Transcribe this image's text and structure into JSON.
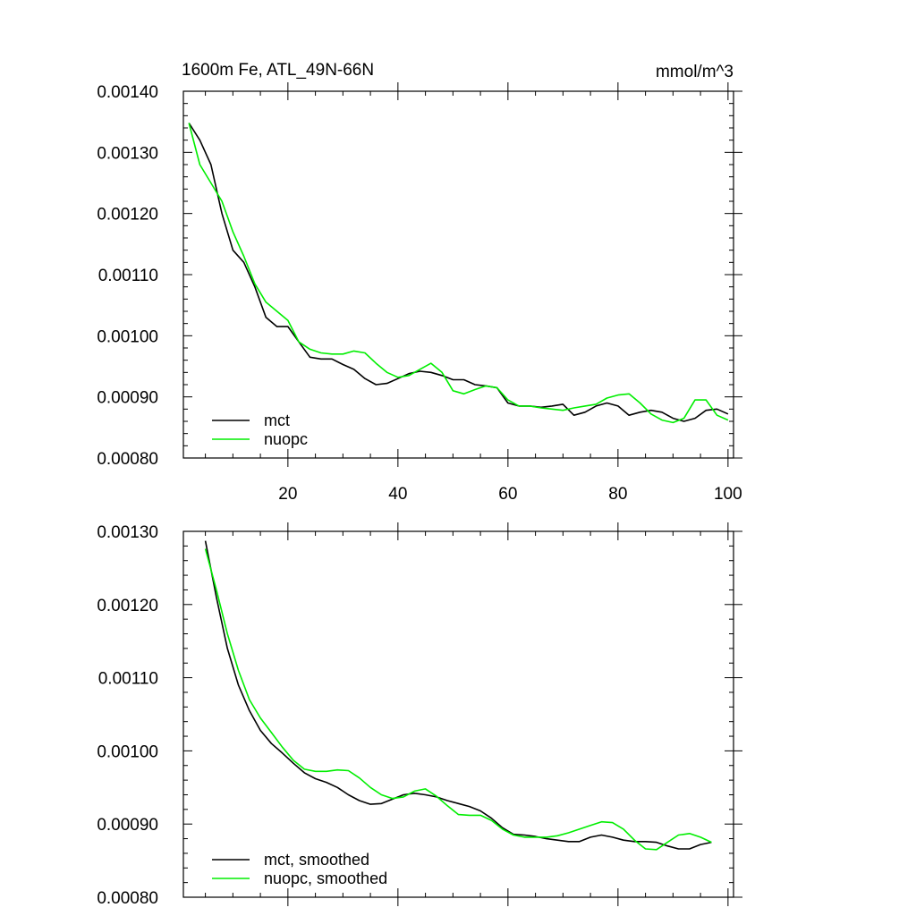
{
  "chart_data": [
    {
      "type": "line",
      "title": "1600m Fe, ATL_49N-66N",
      "units_label": "mmol/m^3",
      "xlim": [
        1,
        101
      ],
      "ylim": [
        0.0008,
        0.0014
      ],
      "xticks": [
        20,
        40,
        60,
        80,
        100
      ],
      "yticks": [
        0.0008,
        0.0009,
        0.001,
        0.0011,
        0.0012,
        0.0013,
        0.0014
      ],
      "ytick_labels": [
        "0.00080",
        "0.00090",
        "0.00100",
        "0.00110",
        "0.00120",
        "0.00130",
        "0.00140"
      ],
      "xtick_labels": [
        "20",
        "40",
        "60",
        "80",
        "100"
      ],
      "legend_position": "bottom-left",
      "grid": false,
      "series": [
        {
          "name": "mct",
          "color": "#000000",
          "x": [
            2,
            4,
            6,
            8,
            10,
            12,
            14,
            16,
            18,
            20,
            22,
            24,
            26,
            28,
            30,
            32,
            34,
            36,
            38,
            40,
            42,
            44,
            46,
            48,
            50,
            52,
            54,
            56,
            58,
            60,
            62,
            64,
            66,
            68,
            70,
            72,
            74,
            76,
            78,
            80,
            82,
            84,
            86,
            88,
            90,
            92,
            94,
            96,
            98,
            100
          ],
          "values": [
            0.001348,
            0.00132,
            0.00128,
            0.0012,
            0.00114,
            0.00112,
            0.00108,
            0.00103,
            0.001015,
            0.001015,
            0.00099,
            0.000965,
            0.000962,
            0.000962,
            0.000953,
            0.000945,
            0.00093,
            0.00092,
            0.000922,
            0.00093,
            0.000938,
            0.000942,
            0.00094,
            0.000935,
            0.000928,
            0.000928,
            0.00092,
            0.000918,
            0.000915,
            0.00089,
            0.000885,
            0.000885,
            0.000883,
            0.000885,
            0.000888,
            0.00087,
            0.000875,
            0.000885,
            0.00089,
            0.000885,
            0.00087,
            0.000875,
            0.000878,
            0.000875,
            0.000865,
            0.00086,
            0.000865,
            0.000878,
            0.00088,
            0.000872
          ]
        },
        {
          "name": "nuopc",
          "color": "#00ee00",
          "x": [
            2,
            4,
            6,
            8,
            10,
            12,
            14,
            16,
            18,
            20,
            22,
            24,
            26,
            28,
            30,
            32,
            34,
            36,
            38,
            40,
            42,
            44,
            46,
            48,
            50,
            52,
            54,
            56,
            58,
            60,
            62,
            64,
            66,
            68,
            70,
            72,
            74,
            76,
            78,
            80,
            82,
            84,
            86,
            88,
            90,
            92,
            94,
            96,
            98,
            100
          ],
          "values": [
            0.001348,
            0.00128,
            0.00125,
            0.00122,
            0.00117,
            0.00113,
            0.001085,
            0.001055,
            0.00104,
            0.001025,
            0.00099,
            0.000978,
            0.000972,
            0.00097,
            0.00097,
            0.000975,
            0.000972,
            0.000955,
            0.00094,
            0.000932,
            0.000935,
            0.000945,
            0.000955,
            0.00094,
            0.00091,
            0.000905,
            0.000912,
            0.000918,
            0.000915,
            0.000895,
            0.000885,
            0.000885,
            0.000882,
            0.00088,
            0.000878,
            0.000882,
            0.000885,
            0.000888,
            0.000898,
            0.000903,
            0.000905,
            0.00089,
            0.000872,
            0.000862,
            0.000858,
            0.000865,
            0.000895,
            0.000895,
            0.00087,
            0.000862
          ]
        }
      ]
    },
    {
      "type": "line",
      "xlim": [
        1,
        101
      ],
      "ylim": [
        0.0008,
        0.0013
      ],
      "xticks": [
        20,
        40,
        60,
        80,
        100
      ],
      "yticks": [
        0.0008,
        0.0009,
        0.001,
        0.0011,
        0.0012,
        0.0013
      ],
      "ytick_labels": [
        "0.00080",
        "0.00090",
        "0.00100",
        "0.00110",
        "0.00120",
        "0.00130"
      ],
      "legend_position": "bottom-left",
      "grid": false,
      "series": [
        {
          "name": "mct, smoothed",
          "color": "#000000",
          "x": [
            5,
            7,
            9,
            11,
            13,
            15,
            17,
            19,
            21,
            23,
            25,
            27,
            29,
            31,
            33,
            35,
            37,
            39,
            41,
            43,
            45,
            47,
            49,
            51,
            53,
            55,
            57,
            59,
            61,
            63,
            65,
            67,
            69,
            71,
            73,
            75,
            77,
            79,
            81,
            83,
            85,
            87,
            89,
            91,
            93,
            95,
            97
          ],
          "values": [
            0.001287,
            0.00121,
            0.00114,
            0.00109,
            0.001055,
            0.001028,
            0.00101,
            0.000997,
            0.000983,
            0.00097,
            0.000962,
            0.000957,
            0.00095,
            0.00094,
            0.000932,
            0.000927,
            0.000928,
            0.000934,
            0.00094,
            0.000942,
            0.00094,
            0.000937,
            0.000932,
            0.000928,
            0.000924,
            0.000918,
            0.000908,
            0.000895,
            0.000886,
            0.000885,
            0.000883,
            0.00088,
            0.000878,
            0.000876,
            0.000876,
            0.000882,
            0.000885,
            0.000882,
            0.000878,
            0.000876,
            0.000876,
            0.000875,
            0.00087,
            0.000866,
            0.000866,
            0.000872,
            0.000875
          ]
        },
        {
          "name": "nuopc, smoothed",
          "color": "#00ee00",
          "x": [
            5,
            7,
            9,
            11,
            13,
            15,
            17,
            19,
            21,
            23,
            25,
            27,
            29,
            31,
            33,
            35,
            37,
            39,
            41,
            43,
            45,
            47,
            49,
            51,
            53,
            55,
            57,
            59,
            61,
            63,
            65,
            67,
            69,
            71,
            73,
            75,
            77,
            79,
            81,
            83,
            85,
            87,
            89,
            91,
            93,
            95,
            97
          ],
          "values": [
            0.001276,
            0.00122,
            0.00116,
            0.00111,
            0.00107,
            0.001045,
            0.001025,
            0.001005,
            0.000987,
            0.000975,
            0.000972,
            0.000972,
            0.000974,
            0.000973,
            0.000963,
            0.00095,
            0.00094,
            0.000935,
            0.000937,
            0.000945,
            0.000948,
            0.000938,
            0.000925,
            0.000913,
            0.000912,
            0.000912,
            0.000905,
            0.000893,
            0.000885,
            0.000882,
            0.000882,
            0.000882,
            0.000884,
            0.000888,
            0.000893,
            0.000898,
            0.000903,
            0.000902,
            0.000893,
            0.000878,
            0.000866,
            0.000865,
            0.000875,
            0.000885,
            0.000887,
            0.000882,
            0.000875
          ]
        }
      ]
    }
  ]
}
